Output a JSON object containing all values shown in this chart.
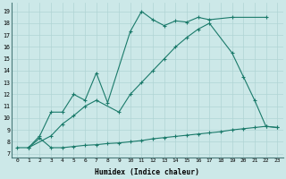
{
  "bg_color": "#cce8e8",
  "grid_color": "#b0d4d4",
  "line_color": "#1a7a6a",
  "xlabel": "Humidex (Indice chaleur)",
  "xlim": [
    -0.5,
    23.5
  ],
  "ylim": [
    6.7,
    19.7
  ],
  "xticks": [
    0,
    1,
    2,
    3,
    4,
    5,
    6,
    7,
    8,
    9,
    10,
    11,
    12,
    13,
    14,
    15,
    16,
    17,
    18,
    19,
    20,
    21,
    22,
    23
  ],
  "yticks": [
    7,
    8,
    9,
    10,
    11,
    12,
    13,
    14,
    15,
    16,
    17,
    18,
    19
  ],
  "line1_x": [
    1,
    2,
    3,
    4,
    5,
    6,
    7,
    8,
    10,
    11,
    12,
    13,
    14,
    15,
    16,
    17,
    19,
    22
  ],
  "line1_y": [
    7.5,
    8.5,
    10.5,
    10.5,
    12.0,
    11.5,
    13.8,
    11.3,
    17.3,
    19.0,
    18.3,
    17.8,
    18.2,
    18.1,
    18.5,
    18.3,
    18.5,
    18.5
  ],
  "line2_x": [
    0,
    1,
    2,
    3,
    4,
    5,
    6,
    7,
    8,
    9,
    10,
    11,
    12,
    13,
    14,
    15,
    16,
    17,
    18,
    19,
    20,
    21,
    22,
    23
  ],
  "line2_y": [
    7.5,
    7.5,
    8.3,
    7.5,
    7.5,
    7.6,
    7.7,
    7.75,
    7.85,
    7.9,
    8.0,
    8.1,
    8.25,
    8.35,
    8.45,
    8.55,
    8.65,
    8.75,
    8.85,
    9.0,
    9.1,
    9.2,
    9.3,
    9.2
  ],
  "line3_x": [
    1,
    3,
    4,
    5,
    6,
    7,
    9,
    10,
    11,
    12,
    13,
    14,
    15,
    16,
    17,
    19,
    20,
    21,
    22,
    23
  ],
  "line3_y": [
    7.5,
    8.5,
    9.5,
    10.2,
    11.0,
    11.5,
    10.5,
    12.0,
    13.0,
    14.0,
    15.0,
    16.0,
    16.8,
    17.5,
    18.0,
    15.5,
    13.5,
    11.5,
    9.3,
    9.2
  ]
}
